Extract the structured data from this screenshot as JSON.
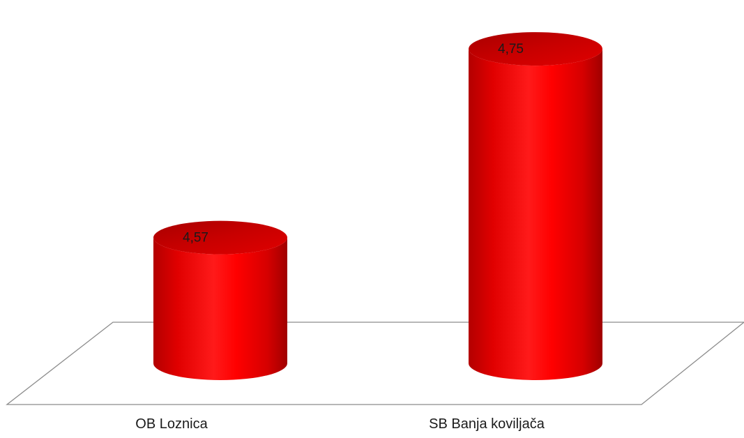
{
  "chart_data": {
    "type": "bar",
    "style": "3d-cylinder",
    "categories": [
      "OB Loznica",
      "SB Banja koviljača"
    ],
    "values": [
      4.57,
      4.75
    ],
    "value_labels": [
      "4,57",
      "4,75"
    ],
    "title": "",
    "xlabel": "",
    "ylabel": "",
    "ylim": [
      4.45,
      4.77
    ],
    "grid": false,
    "legend": "none",
    "colors": {
      "bar": "#ff0000",
      "bar_dark": "#b80000",
      "bar_top": "#c00000",
      "floor_line": "#8c8c8c"
    }
  }
}
